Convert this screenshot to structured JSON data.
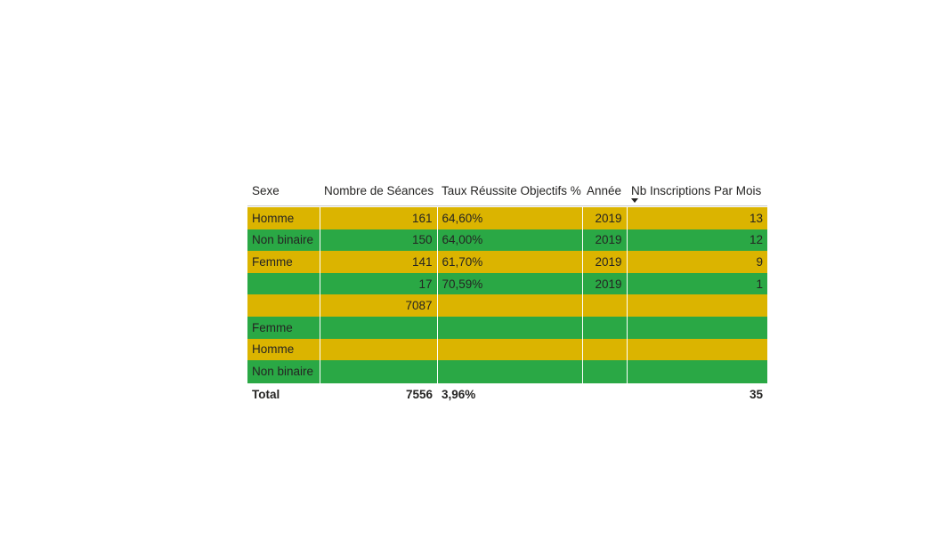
{
  "table": {
    "headers": {
      "sexe": "Sexe",
      "seances": "Nombre de Séances",
      "taux": "Taux Réussite Objectifs %",
      "annee": "Année",
      "inscriptions": "Nb Inscriptions Par Mois"
    },
    "sorted_column": "inscriptions",
    "sort_direction": "descending",
    "row_colors": {
      "yellow": "#dbb400",
      "green": "#2aa845"
    },
    "rows": [
      {
        "sexe": "Homme",
        "seances": "161",
        "taux": "64,60%",
        "annee": "2019",
        "inscriptions": "13",
        "color": "yellow"
      },
      {
        "sexe": "Non binaire",
        "seances": "150",
        "taux": "64,00%",
        "annee": "2019",
        "inscriptions": "12",
        "color": "green"
      },
      {
        "sexe": "Femme",
        "seances": "141",
        "taux": "61,70%",
        "annee": "2019",
        "inscriptions": "9",
        "color": "yellow"
      },
      {
        "sexe": "",
        "seances": "17",
        "taux": "70,59%",
        "annee": "2019",
        "inscriptions": "1",
        "color": "green"
      },
      {
        "sexe": "",
        "seances": "7087",
        "taux": "",
        "annee": "",
        "inscriptions": "",
        "color": "yellow"
      },
      {
        "sexe": "Femme",
        "seances": "",
        "taux": "",
        "annee": "",
        "inscriptions": "",
        "color": "green"
      },
      {
        "sexe": "Homme",
        "seances": "",
        "taux": "",
        "annee": "",
        "inscriptions": "",
        "color": "yellow"
      },
      {
        "sexe": "Non binaire",
        "seances": "",
        "taux": "",
        "annee": "",
        "inscriptions": "",
        "color": "green"
      }
    ],
    "total": {
      "label": "Total",
      "seances": "7556",
      "taux": "3,96%",
      "annee": "",
      "inscriptions": "35"
    }
  }
}
